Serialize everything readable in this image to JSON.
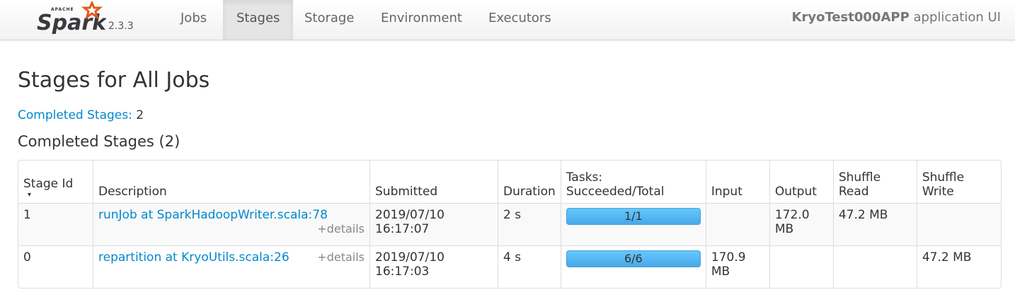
{
  "nav": {
    "logo_text": "Spark",
    "logo_sub": "APACHE",
    "version": "2.3.3",
    "tabs": [
      {
        "label": "Jobs"
      },
      {
        "label": "Stages",
        "active": true
      },
      {
        "label": "Storage"
      },
      {
        "label": "Environment"
      },
      {
        "label": "Executors"
      }
    ],
    "app_name": "KryoTest000APP",
    "app_suffix": "application UI"
  },
  "page": {
    "title": "Stages for All Jobs",
    "summary_label": "Completed Stages:",
    "summary_value": "2",
    "section_title": "Completed Stages (2)"
  },
  "table": {
    "headers": [
      "Stage Id",
      "Description",
      "Submitted",
      "Duration",
      "Tasks: Succeeded/Total",
      "Input",
      "Output",
      "Shuffle Read",
      "Shuffle Write"
    ],
    "sort_indicator": "▾",
    "rows": [
      {
        "id": "1",
        "desc": "runJob at SparkHadoopWriter.scala:78",
        "details": "+details",
        "submitted": "2019/07/10 16:17:07",
        "duration": "2 s",
        "tasks": "1/1",
        "progress": 1.0,
        "input": "",
        "output": "172.0 MB",
        "shuffle_read": "47.2 MB",
        "shuffle_write": ""
      },
      {
        "id": "0",
        "desc": "repartition at KryoUtils.scala:26",
        "details": "+details",
        "submitted": "2019/07/10 16:17:03",
        "duration": "4 s",
        "tasks": "6/6",
        "progress": 1.0,
        "input": "170.9 MB",
        "output": "",
        "shuffle_read": "",
        "shuffle_write": "47.2 MB"
      }
    ]
  },
  "colors": {
    "accent": "#0088cc",
    "progress": "#5bbcf5",
    "logo_star": "#e25a1c"
  }
}
